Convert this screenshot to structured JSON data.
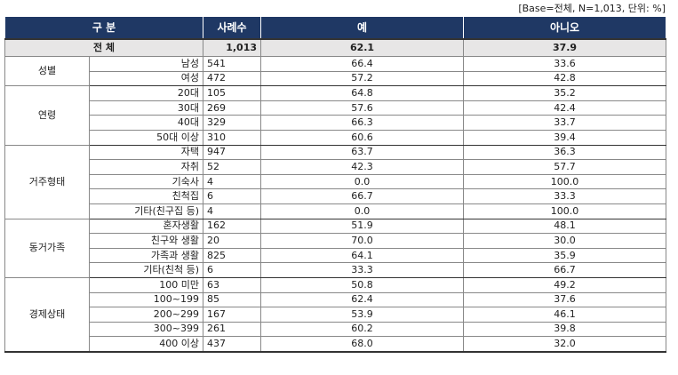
{
  "note": "[Base=전체, N=1,013, 단위: %]",
  "table": {
    "header": [
      "구 분",
      "사례수",
      "예",
      "아니오"
    ],
    "total": [
      "전 체",
      "1,013",
      "62.1",
      "37.9"
    ],
    "groups": [
      {
        "label": "성별",
        "rows": [
          [
            "남성",
            "541",
            "66.4",
            "33.6"
          ],
          [
            "여성",
            "472",
            "57.2",
            "42.8"
          ]
        ]
      },
      {
        "label": "연령",
        "rows": [
          [
            "20대",
            "105",
            "64.8",
            "35.2"
          ],
          [
            "30대",
            "269",
            "57.6",
            "42.4"
          ],
          [
            "40대",
            "329",
            "66.3",
            "33.7"
          ],
          [
            "50대 이상",
            "310",
            "60.6",
            "39.4"
          ]
        ]
      },
      {
        "label": "거주형태",
        "rows": [
          [
            "자택",
            "947",
            "63.7",
            "36.3"
          ],
          [
            "자취",
            "52",
            "42.3",
            "57.7"
          ],
          [
            "기숙사",
            "4",
            "0.0",
            "100.0"
          ],
          [
            "친척집",
            "6",
            "66.7",
            "33.3"
          ],
          [
            "기타(친구집 등)",
            "4",
            "0.0",
            "100.0"
          ]
        ]
      },
      {
        "label": "동거가족",
        "rows": [
          [
            "혼자생활",
            "162",
            "51.9",
            "48.1"
          ],
          [
            "친구와 생활",
            "20",
            "70.0",
            "30.0"
          ],
          [
            "가족과 생활",
            "825",
            "64.1",
            "35.9"
          ],
          [
            "기타(친척 등)",
            "6",
            "33.3",
            "66.7"
          ]
        ]
      },
      {
        "label": "경제상태",
        "rows": [
          [
            "100 미만",
            "63",
            "50.8",
            "49.2"
          ],
          [
            "100~199",
            "85",
            "62.4",
            "37.6"
          ],
          [
            "200~299",
            "167",
            "53.9",
            "46.1"
          ],
          [
            "300~399",
            "261",
            "60.2",
            "39.8"
          ],
          [
            "400 이상",
            "437",
            "68.0",
            "32.0"
          ]
        ]
      }
    ]
  }
}
